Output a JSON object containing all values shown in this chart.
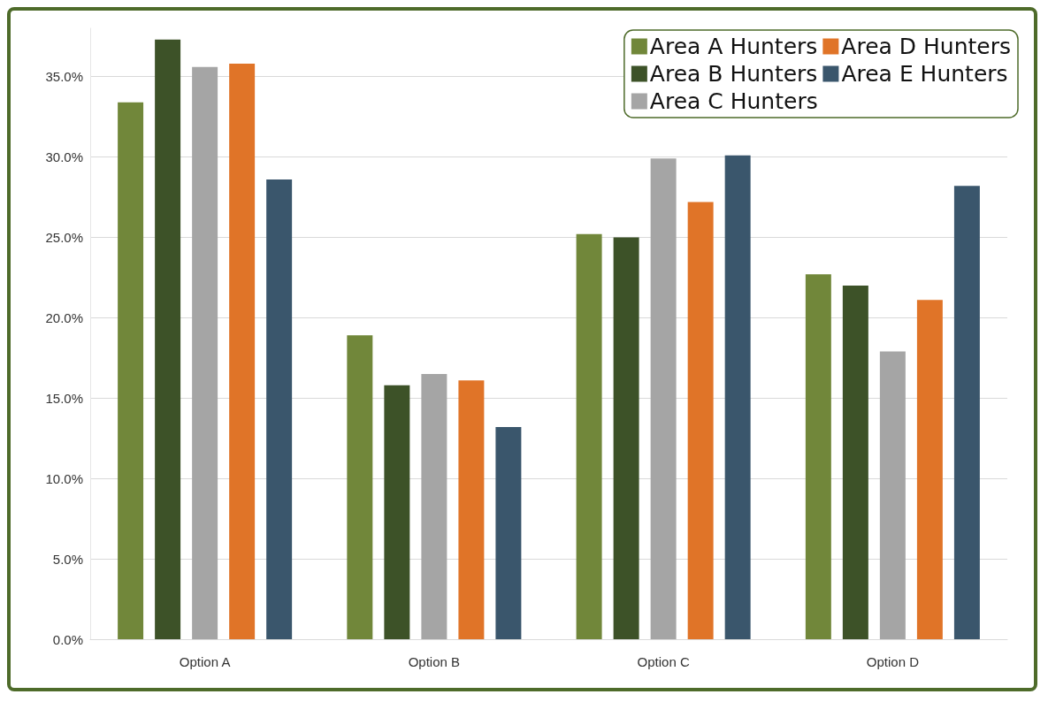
{
  "chart_data": {
    "type": "bar",
    "categories": [
      "Option A",
      "Option B",
      "Option C",
      "Option D"
    ],
    "series": [
      {
        "name": "Area A Hunters",
        "color": "#71873a",
        "values": [
          33.4,
          18.9,
          25.2,
          22.7
        ]
      },
      {
        "name": "Area B Hunters",
        "color": "#3d5228",
        "values": [
          37.3,
          15.8,
          25.0,
          22.0
        ]
      },
      {
        "name": "Area C Hunters",
        "color": "#a5a5a5",
        "values": [
          35.6,
          16.5,
          29.9,
          17.9
        ]
      },
      {
        "name": "Area D Hunters",
        "color": "#e07428",
        "values": [
          35.8,
          16.1,
          27.2,
          21.1
        ]
      },
      {
        "name": "Area E Hunters",
        "color": "#3a566c",
        "values": [
          28.6,
          13.2,
          30.1,
          28.2
        ]
      }
    ],
    "ylim": [
      0,
      38
    ],
    "yticks": [
      {
        "value": 0,
        "label": "0.0%"
      },
      {
        "value": 5,
        "label": "5.0%"
      },
      {
        "value": 10,
        "label": "10.0%"
      },
      {
        "value": 15,
        "label": "15.0%"
      },
      {
        "value": 20,
        "label": "20.0%"
      },
      {
        "value": 25,
        "label": "25.0%"
      },
      {
        "value": 30,
        "label": "30.0%"
      },
      {
        "value": 35,
        "label": "35.0%"
      }
    ],
    "grid": "y",
    "legend": "top right"
  }
}
